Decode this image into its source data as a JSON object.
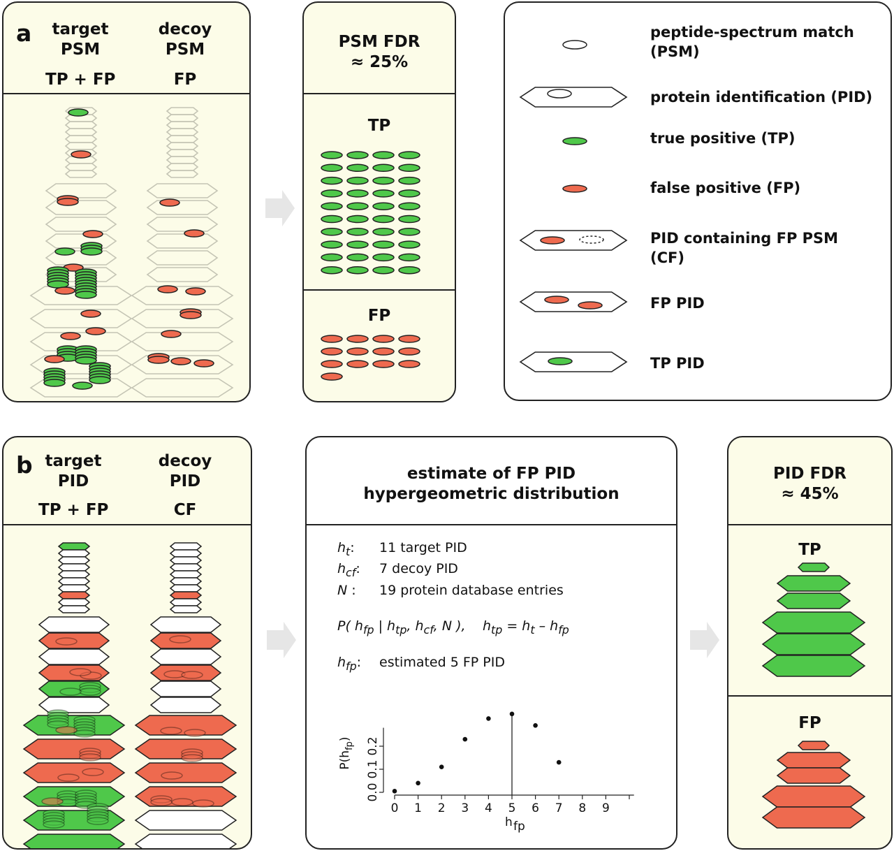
{
  "panel_a": {
    "letter": "a",
    "target": {
      "line1": "target",
      "line2": "PSM",
      "sub": "TP + FP"
    },
    "decoy": {
      "line1": "decoy",
      "line2": "PSM",
      "sub": "FP"
    }
  },
  "psm_fdr": {
    "line1": "PSM FDR",
    "line2": "≈ 25%",
    "tp_label": "TP",
    "fp_label": "FP",
    "tp_count": 40,
    "fp_count": 13
  },
  "legend": {
    "items": [
      {
        "label": "peptide-spectrum match",
        "label2": "(PSM)"
      },
      {
        "label": "protein identification (PID)",
        "label2": ""
      },
      {
        "label": "true positive (TP)",
        "label2": ""
      },
      {
        "label": "false positive (FP)",
        "label2": ""
      },
      {
        "label": "PID containing FP PSM",
        "label2": "(CF)"
      },
      {
        "label": "FP PID",
        "label2": ""
      },
      {
        "label": "TP PID",
        "label2": ""
      }
    ]
  },
  "panel_b": {
    "letter": "b",
    "target": {
      "line1": "target",
      "line2": "PID",
      "sub": "TP + FP"
    },
    "decoy": {
      "line1": "decoy",
      "line2": "PID",
      "sub": "CF"
    }
  },
  "estimate": {
    "title1": "estimate of FP PID",
    "title2": "hypergeometric distribution",
    "ht_sym": "h",
    "ht_sub": "t",
    "ht_desc": "11 target PID",
    "hcf_sym": "h",
    "hcf_sub": "cf",
    "hcf_desc": "7 decoy PID",
    "n_sym": "N",
    "n_desc": "19 protein database entries",
    "formula_left": "P( h",
    "formula_fp": "fp",
    "formula_mid": " | h",
    "formula_tp": "tp",
    "formula_cf": "cf",
    "formula_n": ", N ),",
    "formula_right_h": "h",
    "formula_right_tp": "tp",
    "formula_right_eq": " = h",
    "formula_right_t": "t",
    "formula_right_minus": " – h",
    "formula_right_fp": "fp",
    "hfp_sym": "h",
    "hfp_sub": "fp",
    "hfp_desc": "estimated 5 FP PID"
  },
  "chart_data": {
    "type": "scatter",
    "x": [
      0,
      1,
      2,
      3,
      4,
      5,
      6,
      7
    ],
    "y": [
      0.005,
      0.04,
      0.11,
      0.23,
      0.32,
      0.34,
      0.29,
      0.13
    ],
    "highlight_x": 5,
    "xticks": [
      "0",
      "1",
      "2",
      "3",
      "4",
      "5",
      "6",
      "7",
      "8",
      "9"
    ],
    "yticks": [
      "0.0",
      "0.1",
      "0.2"
    ],
    "xlabel": "h",
    "xlabel_sub": "fp",
    "ylabel": "P(h",
    "ylabel_sub": "fp",
    "ylabel_end": ")",
    "xlim": [
      0,
      10
    ],
    "ylim": [
      0,
      0.35
    ]
  },
  "pid_fdr": {
    "line1": "PID FDR",
    "line2": "≈ 45%",
    "tp_label": "TP",
    "fp_label": "FP"
  },
  "colors": {
    "green": "#4fc84a",
    "red": "#ee6a4f",
    "panel": "#fcfce8",
    "grey": "#c4c4b4"
  }
}
